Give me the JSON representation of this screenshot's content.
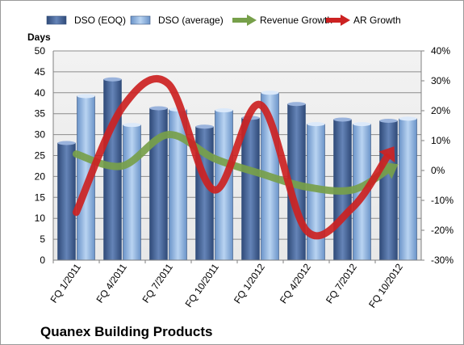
{
  "chart_data": {
    "type": "bar",
    "title": "Quanex Building Products",
    "ylabel": "Days",
    "ylim": [
      0,
      50
    ],
    "y_ticks": [
      "0",
      "5",
      "10",
      "15",
      "20",
      "25",
      "30",
      "35",
      "40",
      "45",
      "50"
    ],
    "y2lim": [
      -30,
      40
    ],
    "y2_ticks": [
      "-30%",
      "-20%",
      "-10%",
      "0%",
      "10%",
      "20%",
      "30%",
      "40%"
    ],
    "categories": [
      "FQ 1/2011",
      "FQ 4/2011",
      "FQ 7/2011",
      "FQ 10/2011",
      "FQ 1/2012",
      "FQ 4/2012",
      "FQ 7/2012",
      "FQ 10/2012"
    ],
    "grid": true,
    "legend_position": "top",
    "series": [
      {
        "name": "DSO (EOQ)",
        "kind": "bar",
        "axis": "left",
        "color": "#4f6ea0",
        "values": [
          28.0,
          43.2,
          36.3,
          31.9,
          34.0,
          37.3,
          33.6,
          33.3
        ]
      },
      {
        "name": "DSO (average)",
        "kind": "bar",
        "axis": "left",
        "color": "#8db4e2",
        "values": [
          39.2,
          32.3,
          36.0,
          35.8,
          40.0,
          32.5,
          32.5,
          33.8
        ]
      },
      {
        "name": "Revenue Growth",
        "kind": "line",
        "axis": "right",
        "color": "#77a04a",
        "values": [
          5.5,
          1.5,
          12,
          4,
          -1,
          -5.5,
          -6.5,
          0
        ]
      },
      {
        "name": "AR Growth",
        "kind": "line",
        "axis": "right",
        "color": "#cc2222",
        "values": [
          -14,
          21,
          29,
          -6.5,
          22,
          -20,
          -12.5,
          4.5
        ]
      }
    ]
  }
}
